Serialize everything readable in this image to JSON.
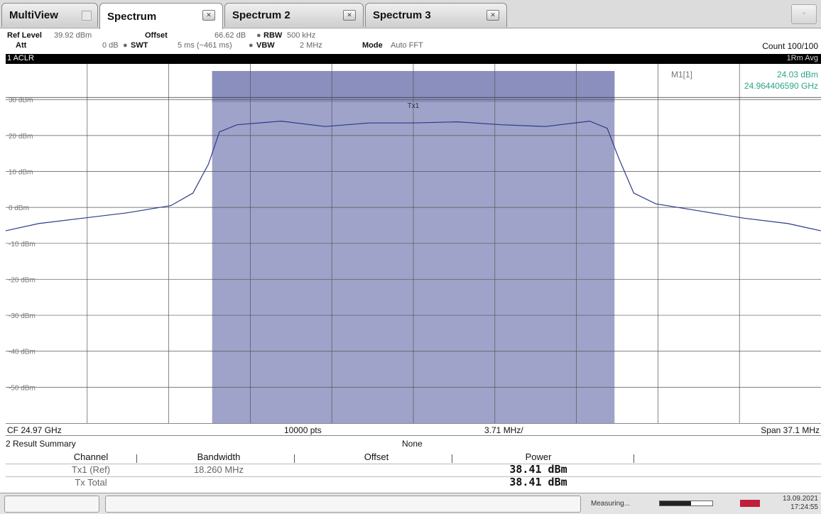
{
  "tabs": [
    {
      "label": "MultiView",
      "active": false
    },
    {
      "label": "Spectrum",
      "active": true
    },
    {
      "label": "Spectrum 2",
      "active": false
    },
    {
      "label": "Spectrum 3",
      "active": false
    }
  ],
  "tab_close_glyph": "✕",
  "settings": {
    "ref_level_label": "Ref Level",
    "ref_level_value": "39.92 dBm",
    "offset_label": "Offset",
    "offset_value": "66.62 dB",
    "rbw_label": "RBW",
    "rbw_value": "500 kHz",
    "att_label": "Att",
    "att_value": "0 dB",
    "swt_label": "SWT",
    "swt_value": "5 ms (~461 ms)",
    "vbw_label": "VBW",
    "vbw_value": "2 MHz",
    "mode_label": "Mode",
    "mode_value": "Auto FFT",
    "count_text": "Count 100/100"
  },
  "diagram": {
    "title": "1 ACLR",
    "trace_mode": "1Rm Avg",
    "marker_name": "M1[1]",
    "marker_level": "24.03 dBm",
    "marker_freq": "24.964406590 GHz",
    "channel_label": "Tx1",
    "cf": "CF 24.97 GHz",
    "points": "10000 pts",
    "div": "3.71 MHz/",
    "span": "Span 37.1 MHz"
  },
  "chart_data": {
    "type": "line",
    "x_unit": "GHz",
    "y_unit": "dBm",
    "xlim": [
      24.9515,
      24.9885
    ],
    "ylim": [
      -60,
      39.92
    ],
    "y_ticks": [
      "30 dBm",
      "20 dBm",
      "10 dBm",
      "0 dBm",
      "-10 dBm",
      "-20 dBm",
      "-30 dBm",
      "-40 dBm",
      "-50 dBm"
    ],
    "y_tick_values": [
      30,
      20,
      10,
      0,
      -10,
      -20,
      -30,
      -40,
      -50
    ],
    "channel_band": [
      24.96087,
      24.97913
    ],
    "series": [
      {
        "x": [
          24.9515,
          24.953,
          24.955,
          24.957,
          24.959,
          24.96,
          24.9607,
          24.9612,
          24.962,
          24.964,
          24.966,
          24.968,
          24.97,
          24.972,
          24.974,
          24.976,
          24.978,
          24.9788,
          24.9793,
          24.98,
          24.981,
          24.983,
          24.985,
          24.987,
          24.9885
        ],
        "y": [
          -6.5,
          -4.5,
          -3,
          -1.5,
          0.5,
          4,
          12,
          21,
          23,
          24,
          22.5,
          23.5,
          23.5,
          23.8,
          23,
          22.5,
          24,
          22,
          14,
          4,
          1,
          -1,
          -3,
          -4.5,
          -6.5
        ]
      }
    ]
  },
  "result_summary": {
    "title": "2 Result Summary",
    "filter": "None",
    "headers": [
      "Channel",
      "Bandwidth",
      "Offset",
      "Power"
    ],
    "rows": [
      {
        "channel": "Tx1 (Ref)",
        "bandwidth": "18.260 MHz",
        "offset": "",
        "power": "38.41 dBm"
      },
      {
        "channel": "Tx Total",
        "bandwidth": "",
        "offset": "",
        "power": "38.41 dBm"
      }
    ]
  },
  "status": {
    "measuring": "Measuring...",
    "progress": 0.6,
    "date": "13.09.2021",
    "time": "17:24:55"
  }
}
